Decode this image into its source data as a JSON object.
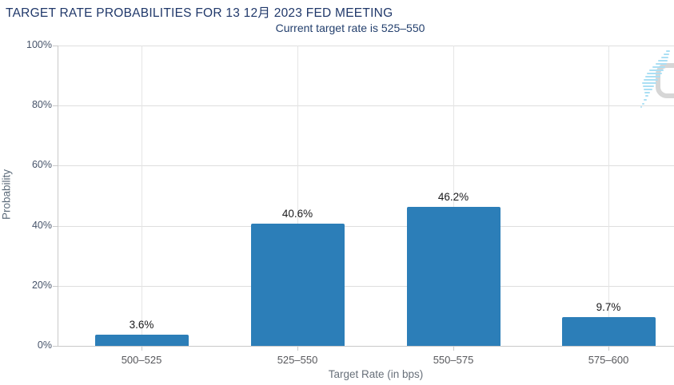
{
  "header": {
    "title": "TARGET RATE PROBABILITIES FOR 13 12月 2023 FED MEETING",
    "subtitle": "Current target rate is 525–550"
  },
  "watermark": {
    "icon": "quikstrike-q-logo",
    "letter": "Q"
  },
  "colors": {
    "bar": "#2c7eb8",
    "title_text": "#20386a",
    "subtitle_text": "#24406e",
    "grid": "#dedede",
    "vertical_grid": "#e5e5e5",
    "axis_line": "#c9c9c9",
    "y_tick_text": "#46536a",
    "x_tick_text": "#56575b",
    "bar_label_text": "#1a1a1c",
    "axis_title_text": "#68707a",
    "watermark_gray": "#d6d6d6",
    "watermark_blue": "#abdff4"
  },
  "chart_data": {
    "type": "bar",
    "title": "TARGET RATE PROBABILITIES FOR 13 12月 2023 FED MEETING",
    "subtitle": "Current target rate is 525–550",
    "categories": [
      "500–525",
      "525–550",
      "550–575",
      "575–600"
    ],
    "values": [
      3.6,
      40.6,
      46.2,
      9.7
    ],
    "bar_labels": [
      "3.6%",
      "40.6%",
      "46.2%",
      "9.7%"
    ],
    "xlabel": "Target Rate (in bps)",
    "ylabel": "Probability",
    "ylim": [
      0,
      100
    ],
    "yticks": [
      0,
      20,
      40,
      60,
      80,
      100
    ],
    "ytick_labels": [
      "0%",
      "20%",
      "40%",
      "60%",
      "80%",
      "100%"
    ],
    "grid": true,
    "legend": false,
    "bar_color": "#2c7eb8"
  }
}
